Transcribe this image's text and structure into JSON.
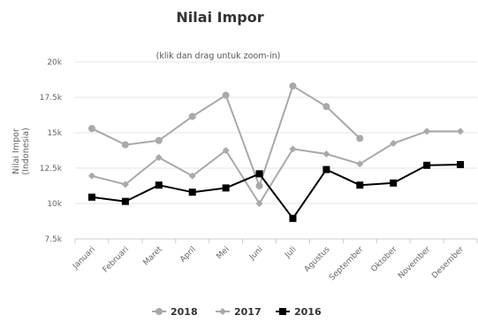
{
  "chart_data": {
    "type": "line",
    "title": "Nilai Impor",
    "subtitle": "(klik dan drag untuk zoom-in)",
    "xlabel": "",
    "ylabel": "Nilai Impor (Indonesia)",
    "ylabel_lines": [
      "Nilai Impor",
      "(Indonesia)"
    ],
    "ylim": [
      7500,
      20000
    ],
    "yticks": [
      7500,
      10000,
      12500,
      15000,
      17500,
      20000
    ],
    "ytick_labels": [
      "7.5k",
      "10k",
      "12.5k",
      "15k",
      "17.5k",
      "20k"
    ],
    "grid": true,
    "legend_position": "bottom-center",
    "categories": [
      "Januari",
      "Februari",
      "Maret",
      "April",
      "Mei",
      "Juni",
      "Juli",
      "Agustus",
      "September",
      "Oktober",
      "November",
      "Desember"
    ],
    "series": [
      {
        "name": "2018",
        "color": "#a9a9a9",
        "marker": "circle",
        "values": [
          15300,
          14150,
          14450,
          16150,
          17650,
          11250,
          18300,
          16850,
          14600,
          null,
          null,
          null
        ]
      },
      {
        "name": "2017",
        "color": "#a9a9a9",
        "marker": "diamond",
        "values": [
          11950,
          11350,
          13250,
          11950,
          13750,
          10000,
          13850,
          13500,
          12800,
          14250,
          15100,
          15100
        ]
      },
      {
        "name": "2016",
        "color": "#000000",
        "marker": "square",
        "values": [
          10450,
          10150,
          11300,
          10800,
          11100,
          12100,
          8950,
          12400,
          11300,
          11450,
          12700,
          12750
        ]
      }
    ]
  }
}
